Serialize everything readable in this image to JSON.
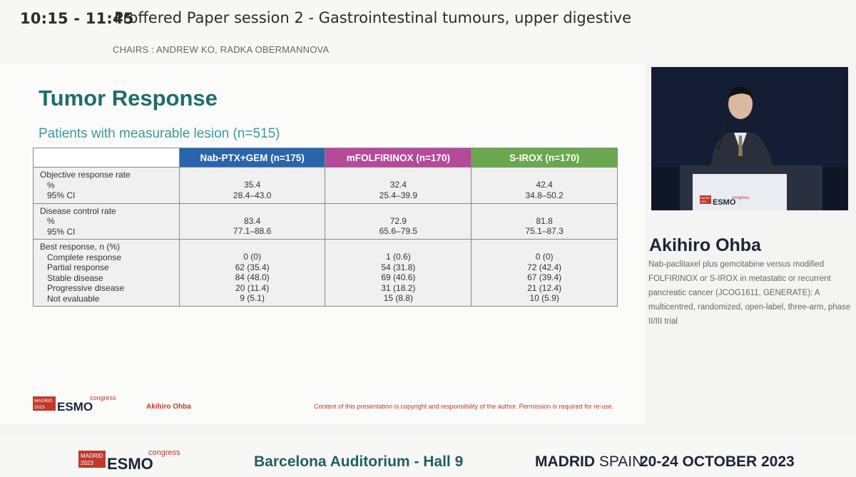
{
  "header": {
    "time": "10:15 - 11:45",
    "session": "Proffered Paper session 2 - Gastrointestinal tumours, upper digestive",
    "chairs": "CHAIRS : ANDREW KO, RADKA OBERMANNOVA"
  },
  "slide": {
    "title": "Tumor Response",
    "subtitle": "Patients with measurable lesion (n=515)",
    "columns": [
      "Nab-PTX+GEM (n=175)",
      "mFOLFIRINOX (n=170)",
      "S-IROX (n=170)"
    ],
    "column_colors": [
      "#2a64ad",
      "#b54a9a",
      "#6aa84f"
    ],
    "orr": {
      "heading": "Objective response rate",
      "pct_label": "%",
      "ci_label": "95% CI",
      "values": [
        {
          "pct": "35.4",
          "ci": "28.4–43.0"
        },
        {
          "pct": "32.4",
          "ci": "25.4–39.9"
        },
        {
          "pct": "42.4",
          "ci": "34.8–50.2"
        }
      ]
    },
    "dcr": {
      "heading": "Disease control rate",
      "pct_label": "%",
      "ci_label": "95% CI",
      "values": [
        {
          "pct": "83.4",
          "ci": "77.1–88.6"
        },
        {
          "pct": "72.9",
          "ci": "65.6–79.5"
        },
        {
          "pct": "81.8",
          "ci": "75.1–87.3"
        }
      ]
    },
    "best": {
      "heading": "Best response, n (%)",
      "labels": [
        "Complete response",
        "Partial response",
        "Stable disease",
        "Progressive disease",
        "Not evaluable"
      ],
      "values": [
        [
          "0 (0)",
          "62 (35.4)",
          "84 (48.0)",
          "20 (11.4)",
          "9 (5.1)"
        ],
        [
          "1 (0.6)",
          "54 (31.8)",
          "69 (40.6)",
          "31 (18.2)",
          "15 (8.8)"
        ],
        [
          "0 (0)",
          "72 (42.4)",
          "67 (39.4)",
          "21 (12.4)",
          "10 (5.9)"
        ]
      ]
    },
    "logo": {
      "city": "MADRID",
      "year": "2023",
      "brand": "ESMO",
      "suffix": "congress"
    },
    "author": "Akihiro Ohba",
    "copyright": "Content of this presentation is copyright and responsibility of the author. Permission is required for re-use."
  },
  "speaker": {
    "name": "Akihiro Ohba",
    "talk_title": "Nab-paclitaxel plus gemcitabine versus modified FOLFIRINOX or S-IROX in metastatic or recurrent pancreatic cancer (JCOG1611, GENERATE): A multicentred, randomized, open-label, three-arm, phase II/III trial",
    "podium_logo": {
      "city": "MADRID",
      "year": "2023",
      "brand": "ESMO",
      "suffix": "congress"
    }
  },
  "footer": {
    "logo": {
      "city": "MADRID",
      "year": "2023",
      "brand": "ESMO",
      "suffix": "congress"
    },
    "venue": "Barcelona Auditorium - Hall 9",
    "city": "MADRID",
    "country": "SPAIN",
    "dates": "20-24 OCTOBER 2023"
  },
  "colors": {
    "teal_title": "#1f6d6a",
    "teal_subtitle": "#3c9a98",
    "esmo_red": "#c0392b",
    "navy": "#1b2538"
  }
}
